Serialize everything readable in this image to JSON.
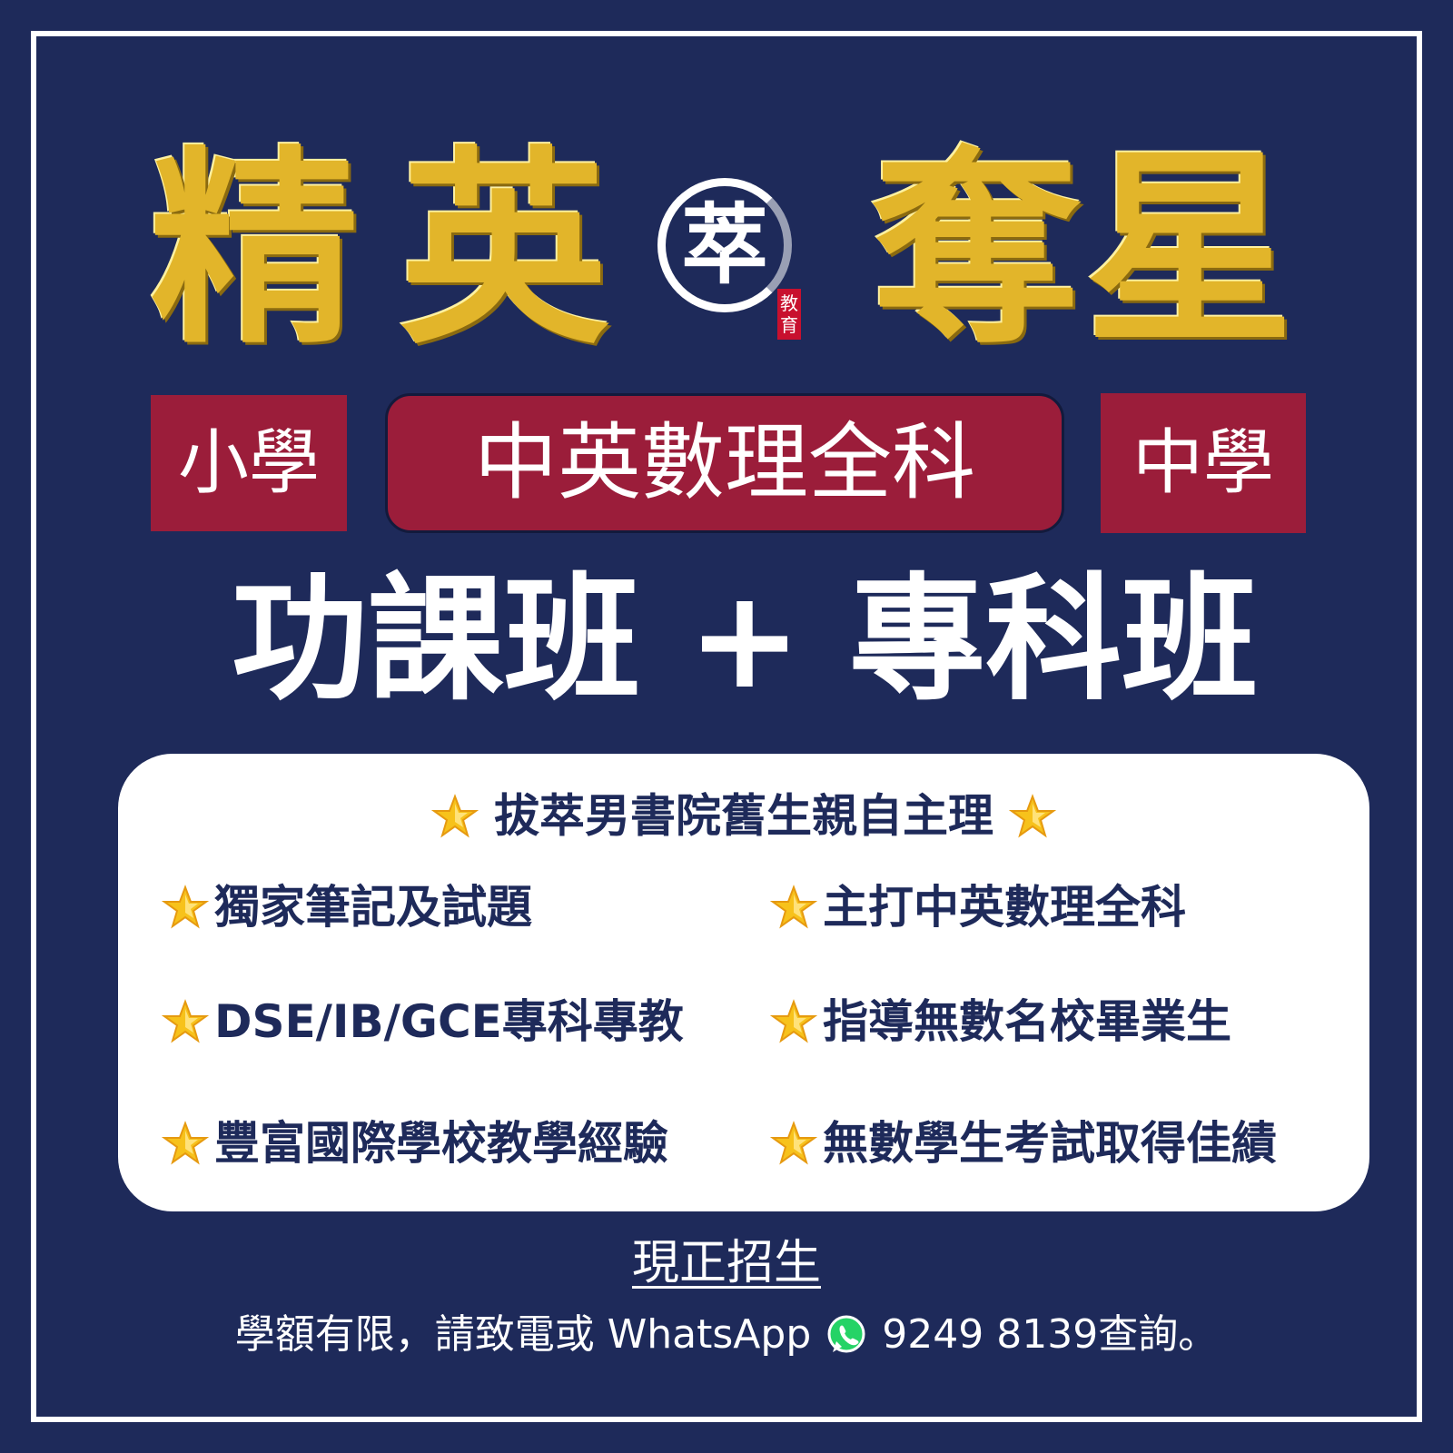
{
  "title": {
    "char1": "精",
    "char2": "英",
    "char3": "奪",
    "char4": "星"
  },
  "logo": {
    "char": "萃",
    "stamp_top": "教",
    "stamp_bottom": "育"
  },
  "badges": {
    "primary": "小學",
    "subjects": "中英數理全科",
    "secondary": "中學"
  },
  "headline": "功課班 + 專科班",
  "panel": {
    "header": "拔萃男書院舊生親自主理",
    "features": [
      "獨家筆記及試題",
      "主打中英數理全科",
      "DSE/IB/GCE專科專教",
      "指導無數名校畢業生",
      "豐富國際學校教學經驗",
      "無數學生考試取得佳績"
    ]
  },
  "footer": {
    "enroll": "現正招生",
    "contact_prefix": "學額有限，請致電或 WhatsApp",
    "contact_suffix": "9249 8139查詢。"
  },
  "colors": {
    "background": "#1e2a5a",
    "gold": "#e2b52a",
    "red_badge": "#9b1d3a",
    "white": "#ffffff",
    "whatsapp_green": "#25d366"
  },
  "icons": {
    "star": "star-icon",
    "whatsapp": "whatsapp-icon"
  }
}
